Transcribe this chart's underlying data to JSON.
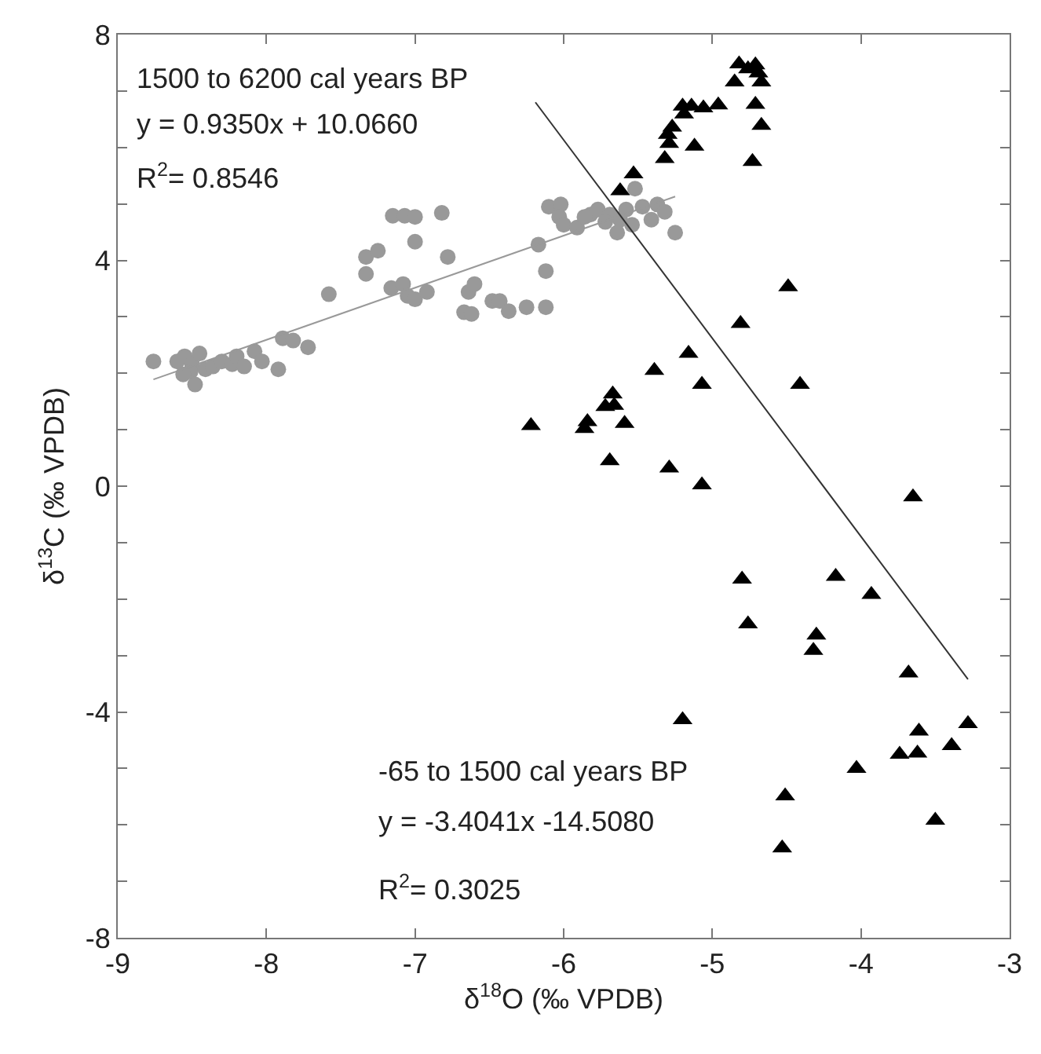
{
  "chart_data": {
    "type": "scatter",
    "xlabel": "δ$^{18}$O (‰ VPDB)",
    "ylabel": "δ$^{13}$C (‰ VPDB)",
    "xlim": [
      -9,
      -3
    ],
    "xticks": [
      -9,
      -8,
      -7,
      -6,
      -5,
      -4,
      -3
    ],
    "ylim": [
      -8,
      8
    ],
    "yticks": [
      8,
      {
        "value": 7,
        "label": null
      },
      {
        "value": 6,
        "label": null
      },
      {
        "value": 5,
        "label": null
      },
      4,
      {
        "value": 3,
        "label": null
      },
      {
        "value": 2,
        "label": null
      },
      {
        "value": 1,
        "label": null
      },
      0,
      {
        "value": -1,
        "label": null
      },
      {
        "value": -2,
        "label": null
      },
      {
        "value": -3,
        "label": null
      },
      -4,
      {
        "value": -5,
        "label": null
      },
      {
        "value": -6,
        "label": null
      },
      {
        "value": -7,
        "label": null
      },
      -8
    ],
    "legend": false,
    "series": [
      {
        "marker": "circle",
        "color": "#999999",
        "x": [
          -8.76,
          -8.6,
          -8.55,
          -8.5,
          -8.45,
          -8.51,
          -8.41,
          -8.56,
          -8.48,
          -8.36,
          -8.3,
          -8.23,
          -8.2,
          -8.15,
          -8.08,
          -8.03,
          -7.92,
          -7.89,
          -7.82,
          -7.72,
          -7.58,
          -7.33,
          -7.33,
          -7.25,
          -7.15,
          -7.07,
          -7.0,
          -7.0,
          -6.82,
          -6.78,
          -7.16,
          -7.08,
          -7.05,
          -7.0,
          -6.92,
          -6.67,
          -6.62,
          -6.64,
          -6.6,
          -6.48,
          -6.43,
          -6.37,
          -6.25,
          -6.17,
          -6.12,
          -6.12,
          -6.1,
          -6.02,
          -6.03,
          -6.0,
          -5.91,
          -5.82,
          -5.77,
          -5.69,
          -5.62,
          -5.58,
          -5.52,
          -5.47,
          -5.41,
          -5.37,
          -5.32,
          -5.25,
          -5.64,
          -5.54,
          -5.86,
          -5.72
        ],
        "values": [
          2.21,
          2.21,
          2.3,
          2.16,
          2.35,
          2.03,
          2.07,
          1.98,
          1.8,
          2.12,
          2.21,
          2.16,
          2.3,
          2.12,
          2.39,
          2.21,
          2.07,
          2.62,
          2.58,
          2.46,
          3.4,
          3.76,
          4.06,
          4.17,
          4.79,
          4.79,
          4.77,
          4.33,
          4.84,
          4.06,
          3.51,
          3.58,
          3.37,
          3.31,
          3.44,
          3.08,
          3.05,
          3.44,
          3.58,
          3.28,
          3.28,
          3.1,
          3.17,
          4.28,
          3.81,
          3.17,
          4.95,
          4.99,
          4.77,
          4.63,
          4.58,
          4.81,
          4.9,
          4.81,
          4.72,
          4.9,
          5.27,
          4.95,
          4.72,
          4.99,
          4.86,
          4.49,
          4.49,
          4.63,
          4.77,
          4.68
        ]
      },
      {
        "marker": "triangle",
        "color": "#000000",
        "x": [
          -4.82,
          -4.71,
          -4.76,
          -4.69,
          -4.85,
          -4.67,
          -4.71,
          -4.67,
          -4.73,
          -5.2,
          -5.14,
          -5.06,
          -4.96,
          -5.19,
          -5.27,
          -5.3,
          -5.29,
          -5.12,
          -5.32,
          -5.53,
          -5.62,
          -4.49,
          -4.81,
          -5.16,
          -5.39,
          -5.07,
          -4.41,
          -5.67,
          -5.72,
          -5.66,
          -5.84,
          -5.86,
          -5.59,
          -6.22,
          -5.69,
          -5.29,
          -5.07,
          -3.65,
          -4.8,
          -4.17,
          -3.93,
          -4.76,
          -4.3,
          -4.32,
          -3.68,
          -5.2,
          -3.28,
          -3.61,
          -3.39,
          -3.74,
          -3.62,
          -4.03,
          -4.51,
          -3.5,
          -4.53
        ],
        "values": [
          7.48,
          7.46,
          7.39,
          7.32,
          7.16,
          7.16,
          6.76,
          6.39,
          5.75,
          6.73,
          6.73,
          6.7,
          6.75,
          6.59,
          6.36,
          6.23,
          6.07,
          6.02,
          5.8,
          5.53,
          5.23,
          3.53,
          2.88,
          2.35,
          2.05,
          1.8,
          1.8,
          1.63,
          1.41,
          1.43,
          1.14,
          1.02,
          1.11,
          1.07,
          0.45,
          0.32,
          0.02,
          -0.19,
          -1.65,
          -1.6,
          -1.92,
          -2.44,
          -2.64,
          -2.91,
          -3.31,
          -4.14,
          -4.21,
          -4.34,
          -4.6,
          -4.75,
          -4.73,
          -5.0,
          -5.49,
          -5.92,
          -6.41
        ]
      },
      {
        "type": "line",
        "color": "#999999",
        "x": [
          -8.76,
          -5.25
        ],
        "values": [
          1.89,
          5.13
        ]
      },
      {
        "type": "line",
        "color": "#333333",
        "x": [
          -6.19,
          -3.28
        ],
        "values": [
          6.8,
          -3.42
        ]
      }
    ],
    "annotations": [
      "1500 to 6200 cal years BP",
      "y = 0.9350x + 10.0660",
      "R$^{2}$= 0.8546",
      "-65 to 1500 cal years BP",
      "y = -3.4041x -14.5080",
      "R$^{2}$= 0.3025"
    ]
  }
}
